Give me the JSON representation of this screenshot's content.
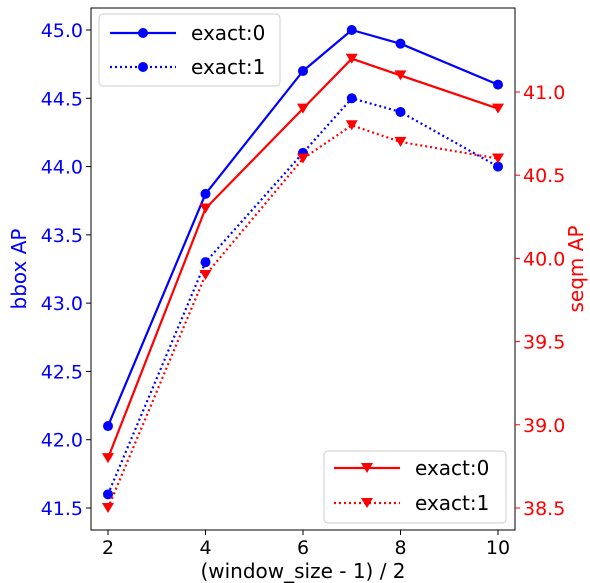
{
  "chart_data": {
    "type": "line",
    "xlabel": "(window_size - 1) / 2",
    "x_ticks": [
      2,
      4,
      6,
      8,
      10
    ],
    "left_axis": {
      "label": "bbox AP",
      "color": "#0000ff",
      "ylim": [
        41.5,
        45.0
      ],
      "ticks": [
        "41.5",
        "42.0",
        "42.5",
        "43.0",
        "43.5",
        "44.0",
        "44.5",
        "45.0"
      ]
    },
    "right_axis": {
      "label": "seqm AP",
      "color": "#ff0000",
      "ylim": [
        38.5,
        41.0
      ],
      "ticks": [
        "38.5",
        "39.0",
        "39.5",
        "40.0",
        "40.5",
        "41.0"
      ]
    },
    "series": [
      {
        "name": "exact:0",
        "axis": "left",
        "color": "#0000ff",
        "linestyle": "solid",
        "marker": "circle",
        "x": [
          2,
          4,
          6,
          7,
          8,
          10
        ],
        "y": [
          42.1,
          43.8,
          44.7,
          45.0,
          44.9,
          44.6
        ]
      },
      {
        "name": "exact:1",
        "axis": "left",
        "color": "#0000ff",
        "linestyle": "dotted",
        "marker": "circle",
        "x": [
          2,
          4,
          6,
          7,
          8,
          10
        ],
        "y": [
          41.6,
          43.3,
          44.1,
          44.5,
          44.4,
          44.0
        ]
      },
      {
        "name": "exact:0",
        "axis": "right",
        "color": "#ff0000",
        "linestyle": "solid",
        "marker": "triangle-down",
        "x": [
          2,
          4,
          6,
          7,
          8,
          10
        ],
        "y": [
          38.8,
          40.3,
          40.9,
          41.2,
          41.1,
          40.9
        ]
      },
      {
        "name": "exact:1",
        "axis": "right",
        "color": "#ff0000",
        "linestyle": "dotted",
        "marker": "triangle-down",
        "x": [
          2,
          4,
          6,
          7,
          8,
          10
        ],
        "y": [
          38.5,
          39.9,
          40.6,
          40.8,
          40.7,
          40.6
        ]
      }
    ],
    "legends": [
      {
        "placement": "top-left",
        "entries": [
          "exact:0",
          "exact:1"
        ]
      },
      {
        "placement": "bottom-right",
        "entries": [
          "exact:0",
          "exact:1"
        ]
      }
    ]
  }
}
